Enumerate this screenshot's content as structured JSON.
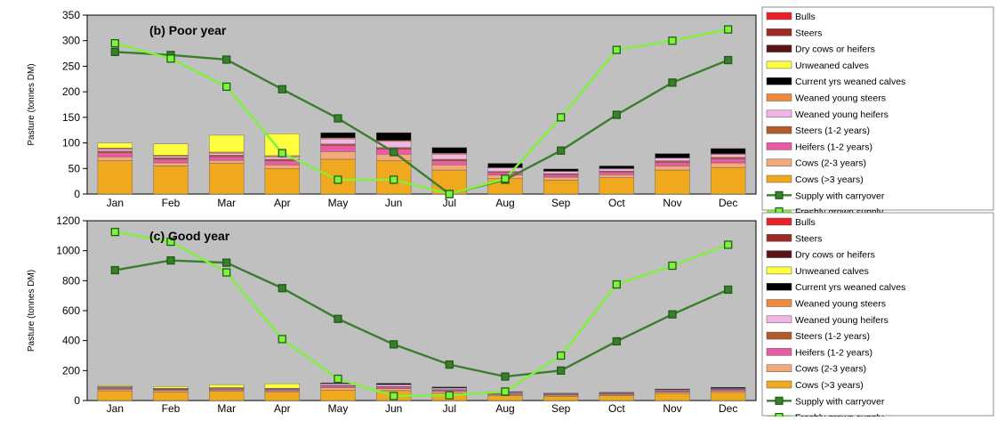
{
  "colors": {
    "plot_bg": "#c0c0c0",
    "supply_with_carryover": "#3a7d2c",
    "freshly_grown_supply": "#7ff23a",
    "marker_dark": "#1f5e17",
    "Bulls": "#e8212a",
    "Steers": "#9e2b23",
    "Dry cows or heifers": "#5a1616",
    "Unweaned calves": "#ffff40",
    "Current yrs weaned calves": "#000000",
    "Weaned young steers": "#f08a3a",
    "Weaned young heifers": "#f2b6e6",
    "Steers (1-2 years)": "#b35a2b",
    "Heifers (1-2 years)": "#ea5aa6",
    "Cows  (2-3 years)": "#f3a97a",
    "Cows (>3 years)": "#f0a81e"
  },
  "chart_data": [
    {
      "type": "bar",
      "title": "(b) Poor year",
      "ylabel": "Pasture (tonnes DM)",
      "ylim": [
        0,
        350
      ],
      "yticks": [
        "0",
        "50",
        "100",
        "150",
        "200",
        "250",
        "300",
        "350"
      ],
      "categories": [
        "Jan",
        "Feb",
        "Mar",
        "Apr",
        "May",
        "Jun",
        "Jul",
        "Aug",
        "Sep",
        "Oct",
        "Nov",
        "Dec"
      ],
      "stacked": true,
      "series": [
        {
          "name": "Cows (>3 years)",
          "values": [
            65,
            55,
            60,
            50,
            68,
            65,
            47,
            30,
            27,
            32,
            47,
            52
          ]
        },
        {
          "name": "Cows  (2-3 years)",
          "values": [
            8,
            6,
            6,
            7,
            15,
            13,
            10,
            7,
            6,
            6,
            8,
            9
          ]
        },
        {
          "name": "Heifers (1-2 years)",
          "values": [
            8,
            7,
            7,
            8,
            12,
            10,
            8,
            5,
            5,
            5,
            7,
            8
          ]
        },
        {
          "name": "Steers (1-2 years)",
          "values": [
            3,
            3,
            3,
            3,
            3,
            3,
            3,
            2,
            2,
            2,
            3,
            3
          ]
        },
        {
          "name": "Weaned young heifers",
          "values": [
            4,
            3,
            4,
            5,
            10,
            12,
            10,
            7,
            4,
            4,
            5,
            5
          ]
        },
        {
          "name": "Weaned young steers",
          "values": [
            2,
            2,
            2,
            2,
            2,
            2,
            2,
            1,
            1,
            1,
            1,
            2
          ]
        },
        {
          "name": "Current yrs weaned calves",
          "values": [
            0,
            0,
            0,
            0,
            10,
            15,
            11,
            8,
            4,
            5,
            8,
            10
          ]
        },
        {
          "name": "Unweaned calves",
          "values": [
            10,
            22,
            33,
            43,
            0,
            0,
            0,
            0,
            0,
            0,
            0,
            0
          ]
        },
        {
          "name": "Dry cows or heifers",
          "values": [
            0,
            0,
            0,
            0,
            0,
            0,
            0,
            0,
            0,
            0,
            0,
            0
          ]
        },
        {
          "name": "Steers",
          "values": [
            0,
            0,
            0,
            0,
            0,
            0,
            0,
            0,
            0,
            0,
            0,
            0
          ]
        },
        {
          "name": "Bulls",
          "values": [
            0,
            0,
            0,
            0,
            0,
            0,
            0,
            0,
            0,
            0,
            0,
            0
          ]
        }
      ],
      "lines": [
        {
          "name": "Supply with carryover",
          "values": [
            278,
            272,
            263,
            205,
            148,
            82,
            0,
            28,
            85,
            155,
            218,
            262
          ]
        },
        {
          "name": "Freshly grown supply",
          "values": [
            295,
            265,
            210,
            80,
            28,
            28,
            0,
            30,
            150,
            282,
            300,
            322
          ]
        }
      ],
      "legend": [
        "Bulls",
        "Steers",
        "Dry cows or heifers",
        "Unweaned calves",
        "Current yrs weaned calves",
        "Weaned young steers",
        "Weaned young heifers",
        "Steers (1-2 years)",
        "Heifers (1-2 years)",
        "Cows  (2-3 years)",
        "Cows (>3 years)",
        "Supply with carryover",
        "Freshly grown supply"
      ],
      "legend_placement": "right",
      "grid": false
    },
    {
      "type": "bar",
      "title": "(c) Good year",
      "ylabel": "Pasture (tonnes DM)",
      "ylim": [
        0,
        1200
      ],
      "yticks": [
        "0",
        "200",
        "400",
        "600",
        "800",
        "1000",
        "1200"
      ],
      "categories": [
        "Jan",
        "Feb",
        "Mar",
        "Apr",
        "May",
        "Jun",
        "Jul",
        "Aug",
        "Sep",
        "Oct",
        "Nov",
        "Dec"
      ],
      "stacked": true,
      "series": [
        {
          "name": "Cows (>3 years)",
          "values": [
            65,
            58,
            62,
            55,
            70,
            66,
            50,
            32,
            28,
            33,
            48,
            54
          ]
        },
        {
          "name": "Cows  (2-3 years)",
          "values": [
            10,
            8,
            8,
            9,
            16,
            14,
            12,
            8,
            7,
            7,
            9,
            10
          ]
        },
        {
          "name": "Heifers (1-2 years)",
          "values": [
            8,
            7,
            7,
            8,
            12,
            10,
            8,
            5,
            5,
            5,
            7,
            8
          ]
        },
        {
          "name": "Steers (1-2 years)",
          "values": [
            3,
            3,
            3,
            3,
            3,
            3,
            3,
            2,
            2,
            2,
            3,
            3
          ]
        },
        {
          "name": "Weaned young heifers",
          "values": [
            4,
            3,
            4,
            5,
            10,
            12,
            10,
            7,
            4,
            4,
            5,
            5
          ]
        },
        {
          "name": "Weaned young steers",
          "values": [
            2,
            2,
            2,
            2,
            2,
            2,
            2,
            1,
            1,
            1,
            1,
            2
          ]
        },
        {
          "name": "Current yrs weaned calves",
          "values": [
            0,
            0,
            0,
            0,
            5,
            8,
            6,
            4,
            2,
            3,
            4,
            6
          ]
        },
        {
          "name": "Unweaned calves",
          "values": [
            8,
            12,
            20,
            30,
            0,
            0,
            0,
            0,
            0,
            0,
            0,
            0
          ]
        },
        {
          "name": "Dry cows or heifers",
          "values": [
            0,
            0,
            0,
            0,
            0,
            0,
            0,
            0,
            0,
            0,
            0,
            0
          ]
        },
        {
          "name": "Steers",
          "values": [
            0,
            0,
            0,
            0,
            0,
            0,
            0,
            0,
            0,
            0,
            0,
            0
          ]
        },
        {
          "name": "Bulls",
          "values": [
            0,
            0,
            0,
            0,
            0,
            0,
            0,
            0,
            0,
            0,
            0,
            0
          ]
        }
      ],
      "lines": [
        {
          "name": "Supply with carryover",
          "values": [
            870,
            935,
            920,
            750,
            545,
            375,
            240,
            160,
            200,
            395,
            575,
            740
          ]
        },
        {
          "name": "Freshly grown supply",
          "values": [
            1125,
            1060,
            855,
            410,
            145,
            30,
            35,
            60,
            300,
            775,
            900,
            1040
          ]
        }
      ],
      "legend": [
        "Bulls",
        "Steers",
        "Dry cows or heifers",
        "Unweaned calves",
        "Current yrs weaned calves",
        "Weaned young steers",
        "Weaned young heifers",
        "Steers (1-2 years)",
        "Heifers (1-2 years)",
        "Cows  (2-3 years)",
        "Cows (>3 years)",
        "Supply with carryover",
        "Freshly grown supply"
      ],
      "legend_placement": "right",
      "grid": false
    }
  ]
}
